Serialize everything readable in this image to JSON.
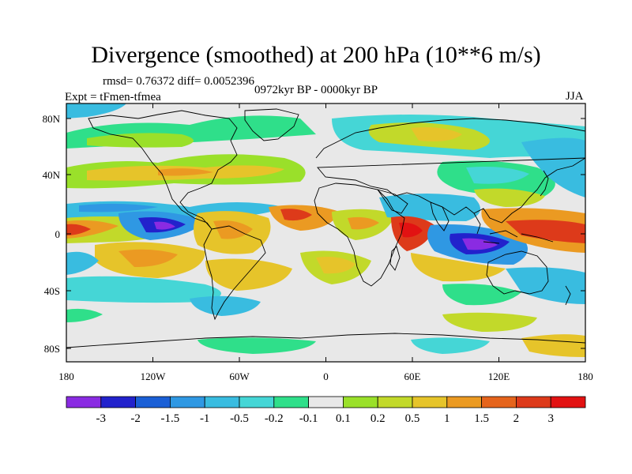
{
  "title": "Divergence (smoothed) at 200 hPa (10**6 m/s)",
  "stats_line": "rmsd= 0.76372 diff= 0.0052396",
  "experiment_line": "Expt = tFmen-tfmea",
  "period_line": "0972kyr BP - 0000kyr BP",
  "season": "JJA",
  "y_ticks": [
    "80N",
    "40N",
    "0",
    "40S",
    "80S"
  ],
  "x_ticks": [
    "180",
    "120W",
    "60W",
    "0",
    "60E",
    "120E",
    "180"
  ],
  "colorbar": {
    "labels": [
      "-3",
      "-2",
      "-1.5",
      "-1",
      "-0.5",
      "-0.2",
      "-0.1",
      "0.1",
      "0.2",
      "0.5",
      "1",
      "1.5",
      "2",
      "3"
    ],
    "colors": [
      "#8a2be2",
      "#2222cc",
      "#1a5fd6",
      "#2f98e3",
      "#39bce0",
      "#45d6d6",
      "#2fdf8a",
      "#e8e8e8",
      "#9ae02a",
      "#c2d92a",
      "#e6c42a",
      "#eb9a22",
      "#e5641c",
      "#dd3a1a",
      "#e21212"
    ]
  },
  "colors": {
    "neutral": "#e8e8e8",
    "coast": "#000000"
  }
}
